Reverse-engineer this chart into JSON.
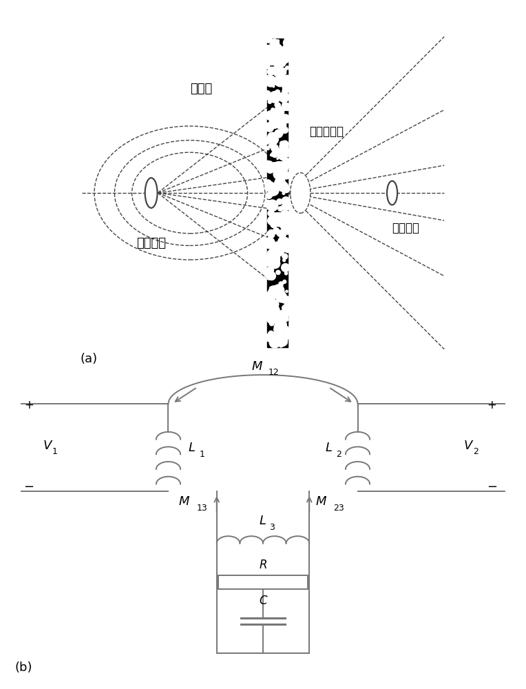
{
  "fig_width": 7.64,
  "fig_height": 10.0,
  "bg_color": "#ffffff",
  "line_color": "#444444",
  "dashed_color": "#444444",
  "gray_color": "#777777",
  "label_a": "(a)",
  "label_b": "(b)",
  "text_main_field": "主磁场",
  "text_excite_coil": "激励线圈",
  "text_secondary_field": "二次级磁场",
  "text_sense_coil": "感应线圈",
  "text_M12": "M",
  "text_M12_sub": "12",
  "text_M13": "M",
  "text_M13_sub": "13",
  "text_M23": "M",
  "text_M23_sub": "23",
  "text_L1": "L",
  "text_L1_sub": "1",
  "text_L2": "L",
  "text_L2_sub": "2",
  "text_L3": "L",
  "text_L3_sub": "3",
  "text_R": "R",
  "text_C": "C",
  "text_V1": "V",
  "text_V1_sub": "1",
  "text_V2": "V",
  "text_V2_sub": "2",
  "text_plus": "+",
  "text_minus": "−"
}
